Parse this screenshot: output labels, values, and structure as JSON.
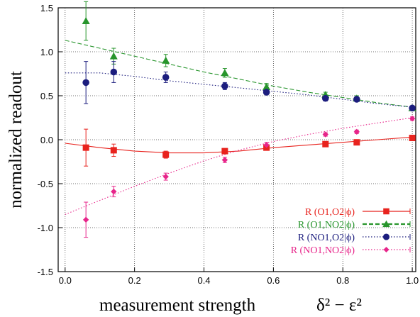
{
  "chart_data": {
    "type": "scatter",
    "title": "",
    "xlabel": "measurement strength",
    "xlabel_formula": "δ² − ε²",
    "ylabel": "normalized readout",
    "xlim": [
      -0.02,
      1.01
    ],
    "ylim": [
      -1.5,
      1.5
    ],
    "x_ticks": [
      "0.0",
      "0.2",
      "0.4",
      "0.6",
      "0.8",
      "1.0"
    ],
    "y_ticks": [
      "1.5",
      "1.0",
      "0.5",
      "0.0",
      "-0.5",
      "-1.0",
      "-1.5"
    ],
    "grid": "dotted",
    "legend_position": "bottom-right",
    "series": [
      {
        "name": "R (O1,O2|ϕ)",
        "color": "#e8231e",
        "marker": "square",
        "line_style": "solid",
        "x": [
          0.06,
          0.14,
          0.29,
          0.46,
          0.58,
          0.75,
          0.84,
          1.0
        ],
        "y": [
          -0.09,
          -0.12,
          -0.17,
          -0.13,
          -0.09,
          -0.05,
          -0.03,
          0.02
        ],
        "err": [
          0.21,
          0.07,
          0.04,
          0.03,
          0.03,
          0.02,
          0.02,
          0.02
        ],
        "fit_x": [
          0.0,
          0.1,
          0.2,
          0.3,
          0.4,
          0.5,
          0.6,
          0.7,
          0.8,
          0.9,
          1.0
        ],
        "fit_y": [
          -0.04,
          -0.09,
          -0.13,
          -0.15,
          -0.15,
          -0.13,
          -0.09,
          -0.06,
          -0.03,
          0.0,
          0.03
        ]
      },
      {
        "name": "R (O1,NO2|ϕ)",
        "color": "#27952c",
        "marker": "triangle",
        "line_style": "dashed",
        "x": [
          0.06,
          0.14,
          0.29,
          0.46,
          0.58,
          0.75,
          0.84,
          1.0
        ],
        "y": [
          1.35,
          0.95,
          0.9,
          0.76,
          0.6,
          0.51,
          0.47,
          0.36
        ],
        "err": [
          0.22,
          0.09,
          0.07,
          0.05,
          0.04,
          0.03,
          0.03,
          0.02
        ],
        "fit_x": [
          0.0,
          0.1,
          0.2,
          0.3,
          0.4,
          0.5,
          0.6,
          0.7,
          0.8,
          0.9,
          1.0
        ],
        "fit_y": [
          1.13,
          1.04,
          0.95,
          0.86,
          0.77,
          0.69,
          0.61,
          0.54,
          0.48,
          0.42,
          0.37
        ]
      },
      {
        "name": "R (NO1,O2|ϕ)",
        "color": "#1c1d7e",
        "marker": "circle",
        "line_style": "dotted",
        "x": [
          0.06,
          0.14,
          0.29,
          0.46,
          0.58,
          0.75,
          0.84,
          1.0
        ],
        "y": [
          0.65,
          0.77,
          0.71,
          0.61,
          0.54,
          0.47,
          0.46,
          0.36
        ],
        "err": [
          0.24,
          0.12,
          0.06,
          0.04,
          0.03,
          0.03,
          0.02,
          0.02
        ],
        "fit_x": [
          0.0,
          0.1,
          0.2,
          0.3,
          0.4,
          0.5,
          0.6,
          0.7,
          0.8,
          0.9,
          1.0
        ],
        "fit_y": [
          0.76,
          0.76,
          0.72,
          0.67,
          0.63,
          0.59,
          0.55,
          0.51,
          0.46,
          0.41,
          0.37
        ]
      },
      {
        "name": "R (NO1,NO2|ϕ)",
        "color": "#e7258a",
        "marker": "diamond",
        "line_style": "dotted",
        "x": [
          0.06,
          0.14,
          0.29,
          0.46,
          0.58,
          0.75,
          0.84,
          1.0
        ],
        "y": [
          -0.91,
          -0.59,
          -0.42,
          -0.23,
          -0.06,
          0.06,
          0.09,
          0.24
        ],
        "err": [
          0.2,
          0.06,
          0.04,
          0.03,
          0.03,
          0.02,
          0.02,
          0.02
        ],
        "fit_x": [
          0.0,
          0.1,
          0.2,
          0.3,
          0.4,
          0.5,
          0.6,
          0.7,
          0.8,
          0.9,
          1.0
        ],
        "fit_y": [
          -0.85,
          -0.69,
          -0.53,
          -0.38,
          -0.24,
          -0.12,
          -0.02,
          0.06,
          0.13,
          0.19,
          0.25
        ]
      }
    ]
  }
}
